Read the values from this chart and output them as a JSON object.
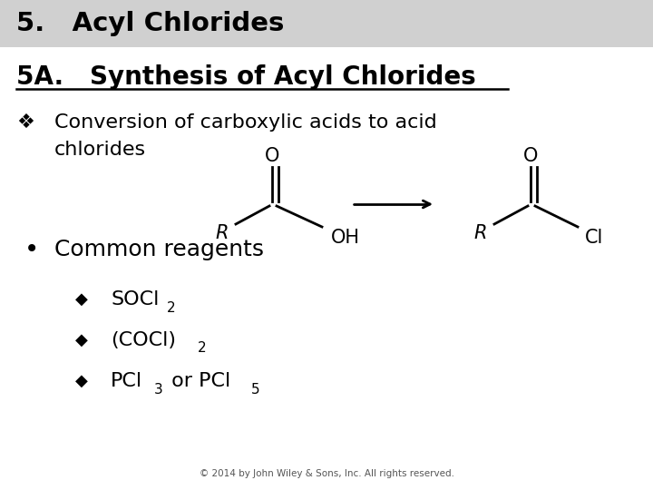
{
  "title": "5.   Acyl Chlorides",
  "title_bg": "#d0d0d0",
  "subtitle": "5A.   Synthesis of Acyl Chlorides",
  "bullet1_line1": "Conversion of carboxylic acids to acid",
  "bullet1_line2": "chlorides",
  "bullet2": "Common reagents",
  "copyright": "© 2014 by John Wiley & Sons, Inc. All rights reserved.",
  "bg_color": "#ffffff",
  "title_color": "#000000",
  "text_color": "#000000",
  "title_font_size": 21,
  "subtitle_font_size": 20,
  "body_font_size": 16,
  "sub_font_size": 16,
  "sub2_font_size": 11
}
